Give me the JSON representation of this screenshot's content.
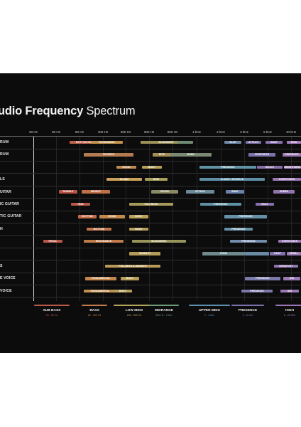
{
  "title": {
    "bold": "udio Frequency",
    "light": "Spectrum"
  },
  "frequency_ticks": [
    "20 Hz",
    "30 Hz",
    "50 Hz",
    "100 Hz",
    "200 Hz",
    "300 Hz",
    "500 Hz",
    "1 kHz",
    "2 kHz",
    "3 kHz",
    "5 kHz",
    "10 kHz"
  ],
  "rows": [
    {
      "label": "RUM",
      "bands": [
        {
          "text": "BOTTOM END",
          "color": "#c0624a"
        },
        {
          "text": "ROUNDNESS",
          "color": "#c2904c"
        },
        {
          "text": "MUDDINESS",
          "color": "#9d8f58"
        },
        {
          "text": "",
          "color": "#6f8c72"
        },
        {
          "text": "SLAP",
          "color": "#6f88a8"
        },
        {
          "text": "ATTACK",
          "color": "#7a6fa8"
        },
        {
          "text": "SNAP",
          "color": "#8a6fae"
        },
        {
          "text": "HISS",
          "color": "#a27cb8"
        }
      ]
    },
    {
      "label": "RUM",
      "bands": [
        {
          "text": "FATNESS",
          "color": "#b37b4f"
        },
        {
          "text": "BITE",
          "color": "#a48d55"
        },
        {
          "text": "BARK",
          "color": "#7a8a73"
        },
        {
          "text": "CRISPNESS",
          "color": "#7d73aa"
        },
        {
          "text": "PRESENCE",
          "color": "#9a74b0"
        }
      ]
    },
    {
      "label": "",
      "bands": [
        {
          "text": "WOOD",
          "color": "#c08a4f"
        },
        {
          "text": "BODY",
          "color": "#b6a059"
        },
        {
          "text": "PRESENCE",
          "color": "#5f93a5"
        },
        {
          "text": "SIZZLE",
          "color": "#8b6fab"
        },
        {
          "text": "BRIGHTNESS",
          "color": "#a07ab6"
        }
      ]
    },
    {
      "label": "LS",
      "bands": [
        {
          "text": "CLANG",
          "color": "#c8a25a"
        },
        {
          "text": "NEW",
          "color": "#a8a05a"
        },
        {
          "text": "CLANG / SPARKLE",
          "color": "#5f8fa6"
        },
        {
          "text": "OVERTONES",
          "color": "#9a78b5"
        }
      ]
    },
    {
      "label": "UITAR",
      "bands": [
        {
          "text": "RUMBLE",
          "color": "#b65445"
        },
        {
          "text": "WEIGHT",
          "color": "#c07048"
        },
        {
          "text": "GROWL",
          "color": "#8a8a64"
        },
        {
          "text": "ATTACK",
          "color": "#6c8a99"
        },
        {
          "text": "SNAP",
          "color": "#6a82aa"
        },
        {
          "text": "SHEEN",
          "color": "#8f74ae"
        }
      ]
    },
    {
      "label": "IC GUITAR",
      "bands": [
        {
          "text": "HUM",
          "color": "#b8574a"
        },
        {
          "text": "FULLNESS",
          "color": "#a89a5b"
        },
        {
          "text": "PRESENCE",
          "color": "#5e92a5"
        },
        {
          "text": "BUZZ",
          "color": "#8a70ac"
        }
      ]
    },
    {
      "label": "TIC GUITAR",
      "bands": [
        {
          "text": "BOTTOM",
          "color": "#c06b49"
        },
        {
          "text": "BOOM",
          "color": "#c2884c"
        },
        {
          "text": "BODY",
          "color": "#b9a05b"
        },
        {
          "text": "PRESENCE",
          "color": "#6690a9"
        }
      ]
    },
    {
      "label": "H",
      "bands": [
        {
          "text": "BOTTOM",
          "color": "#c0744b"
        },
        {
          "text": "BODY",
          "color": "#b79e5a"
        },
        {
          "text": "PRESENCE",
          "color": "#6690a9"
        }
      ]
    },
    {
      "label": "",
      "bands": [
        {
          "text": "PEDAL",
          "color": "#b8564a"
        },
        {
          "text": "RESONANCE",
          "color": "#c07b4b"
        },
        {
          "text": "MUDDINESS",
          "color": "#98955a"
        },
        {
          "text": "PRESENCE",
          "color": "#728bab"
        },
        {
          "text": "OVERTONES",
          "color": "#9676b3"
        }
      ]
    },
    {
      "label": "",
      "bands": [
        {
          "text": "WARMTH",
          "color": "#b49a58"
        },
        {
          "text": "HONK",
          "color": "#6f8a8f"
        },
        {
          "text": "",
          "color": "#6a8ba6"
        },
        {
          "text": "RASP",
          "color": "#8270ac"
        },
        {
          "text": "SHRILL",
          "color": "#9a7ab5"
        }
      ]
    },
    {
      "label": "S",
      "bands": [
        {
          "text": "FULLNESS & WARMTH",
          "color": "#b99a58"
        },
        {
          "text": "SCRATCHY",
          "color": "#9075af"
        }
      ]
    },
    {
      "label": "E VOICE",
      "bands": [
        {
          "text": "FUNDAMENTAL",
          "color": "#c2864c"
        },
        {
          "text": "BODY",
          "color": "#b69e5a"
        },
        {
          "text": "PRESENCE",
          "color": "#7a7aab"
        },
        {
          "text": "AIR",
          "color": "#9a78b5"
        }
      ]
    },
    {
      "label": "VOICE",
      "bands": [
        {
          "text": "FUNDAMENTAL",
          "color": "#c2904f"
        },
        {
          "text": "BODY",
          "color": "#b49e5a"
        },
        {
          "text": "PRESENCE",
          "color": "#7d78ac"
        },
        {
          "text": "AIR",
          "color": "#9a78b5"
        }
      ]
    }
  ],
  "categories": [
    {
      "name": "SUB BASS",
      "range": "20 - 60 Hz",
      "color": "#b9574a"
    },
    {
      "name": "BASS",
      "range": "60 - 250 Hz",
      "color": "#c07a4b"
    },
    {
      "name": "LOW MIDS",
      "range": "250 - 500 Hz",
      "color": "#b5a35c"
    },
    {
      "name": "MIDRANGE",
      "range": "500 Hz - 2 kHz",
      "color": "#6f9a7a"
    },
    {
      "name": "UPPER MIDS",
      "range": "2 - 4 kHz",
      "color": "#5f8fb0"
    },
    {
      "name": "PRESENCE",
      "range": "4 - 6 kHz",
      "color": "#7a72b0"
    },
    {
      "name": "HIGH",
      "range": "6 - 20 kHz",
      "color": "#9a74b6"
    }
  ]
}
